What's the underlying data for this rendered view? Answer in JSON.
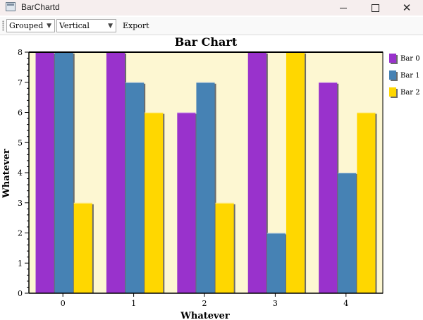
{
  "window": {
    "title": "BarChartd",
    "controls": {
      "minimize": "—",
      "maximize": "□",
      "close": "✕"
    }
  },
  "toolbar": {
    "grouping_select": {
      "value": "Grouped"
    },
    "orientation_select": {
      "value": "Vertical"
    },
    "export_label": "Export"
  },
  "icons": {
    "app": "window-app-icon",
    "dropdown": "chevron-down-icon",
    "grip": "toolbar-grip-icon"
  },
  "colors": {
    "plot_background": "#fdf7d2",
    "series": [
      "#9932cc",
      "#4682b4",
      "#ffd700"
    ]
  },
  "chart_data": {
    "type": "bar",
    "title": "Bar Chart",
    "xlabel": "Whatever",
    "ylabel": "Whatever",
    "categories": [
      "0",
      "1",
      "2",
      "3",
      "4"
    ],
    "series": [
      {
        "name": "Bar 0",
        "values": [
          8,
          8,
          6,
          8,
          7
        ]
      },
      {
        "name": "Bar 1",
        "values": [
          8,
          7,
          7,
          2,
          4
        ]
      },
      {
        "name": "Bar 2",
        "values": [
          3,
          6,
          3,
          8,
          6
        ]
      }
    ],
    "ylim": [
      0,
      8
    ],
    "yticks": [
      "0",
      "1",
      "2",
      "3",
      "4",
      "5",
      "6",
      "7",
      "8"
    ],
    "grid": false,
    "legend": "right"
  }
}
